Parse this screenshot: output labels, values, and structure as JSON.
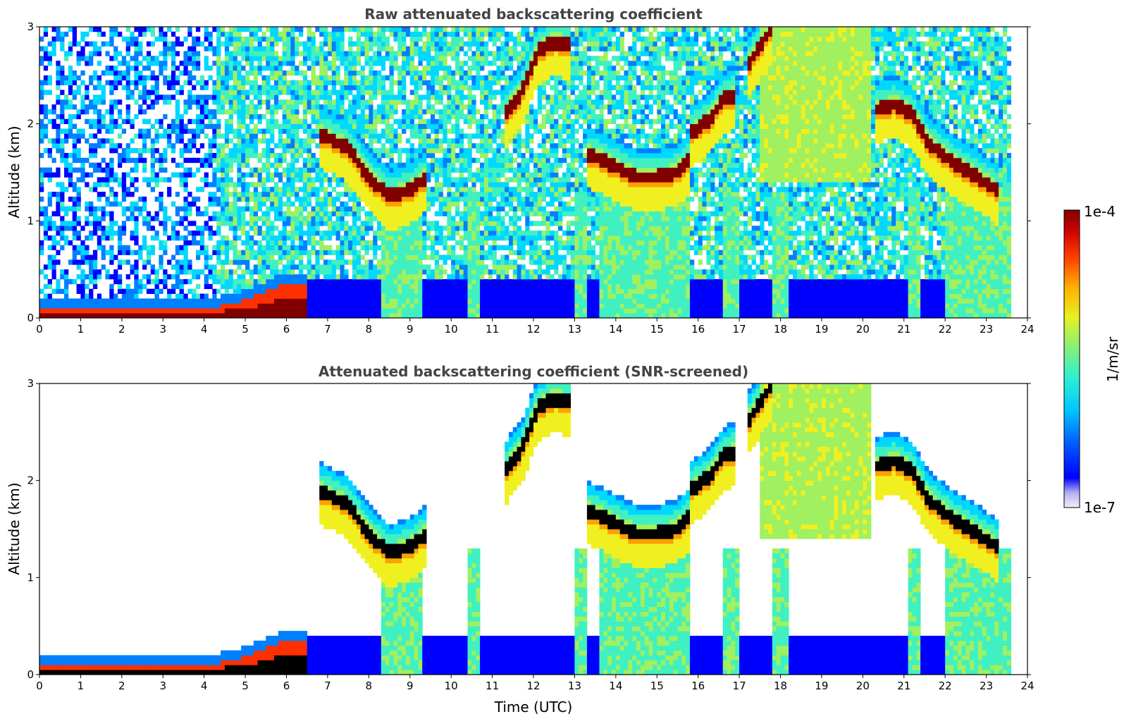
{
  "chart_data": [
    {
      "type": "heatmap",
      "title": "Raw attenuated backscattering coefficient",
      "xlabel": "",
      "ylabel": "Altitude (km)",
      "xlim": [
        0,
        24
      ],
      "ylim": [
        0,
        3
      ],
      "xticks": [
        "0",
        "1",
        "2",
        "3",
        "4",
        "5",
        "6",
        "7",
        "8",
        "9",
        "10",
        "11",
        "12",
        "13",
        "14",
        "15",
        "16",
        "17",
        "18",
        "19",
        "20",
        "21",
        "22",
        "23",
        "24"
      ],
      "yticks": [
        "0",
        "1",
        "2",
        "3"
      ],
      "data_end_hour": 23.6,
      "layers": [
        {
          "feature": "surface aerosol layer",
          "x": [
            0,
            4.3,
            5,
            5.8,
            6.5
          ],
          "y_top_km": [
            0.12,
            0.12,
            0.18,
            0.33,
            0.36
          ],
          "level": "high"
        },
        {
          "feature": "cloud base",
          "x": [
            6.8,
            7.5,
            8,
            8.5,
            9,
            9.4
          ],
          "y_km": [
            1.9,
            1.75,
            1.45,
            1.25,
            1.32,
            1.45
          ],
          "level": "high"
        },
        {
          "feature": "cloud base",
          "x": [
            11.3,
            11.7,
            12.1,
            12.5,
            12.9
          ],
          "y_km": [
            2.1,
            2.3,
            2.75,
            2.85,
            2.8
          ],
          "level": "high"
        },
        {
          "feature": "cloud layer",
          "x": [
            13.3,
            13.8,
            14.5,
            15.0,
            15.5,
            15.8
          ],
          "y_km": [
            1.7,
            1.6,
            1.45,
            1.45,
            1.5,
            1.65
          ],
          "level": "mid-high"
        },
        {
          "feature": "cloud base",
          "x": [
            15.8,
            16.3,
            16.6,
            16.9
          ],
          "y_km": [
            1.9,
            2.05,
            2.25,
            2.3
          ],
          "level": "high"
        },
        {
          "feature": "cloud base",
          "x": [
            17.2,
            17.5,
            17.8
          ],
          "y_km": [
            2.6,
            2.8,
            3.0
          ],
          "level": "high"
        },
        {
          "feature": "cloud base",
          "x": [
            20.3,
            20.8,
            21.2,
            21.6,
            22.2,
            22.8,
            23.3
          ],
          "y_km": [
            2.15,
            2.2,
            2.1,
            1.8,
            1.6,
            1.45,
            1.3
          ],
          "level": "high"
        }
      ]
    },
    {
      "type": "heatmap",
      "title": "Attenuated backscattering coefficient (SNR-screened)",
      "xlabel": "Time (UTC)",
      "ylabel": "Altitude (km)",
      "xlim": [
        0,
        24
      ],
      "ylim": [
        0,
        3
      ],
      "xticks": [
        "0",
        "1",
        "2",
        "3",
        "4",
        "5",
        "6",
        "7",
        "8",
        "9",
        "10",
        "11",
        "12",
        "13",
        "14",
        "15",
        "16",
        "17",
        "18",
        "19",
        "20",
        "21",
        "22",
        "23",
        "24"
      ],
      "yticks": [
        "0",
        "1",
        "2",
        "3"
      ],
      "data_end_hour": 23.6
    }
  ],
  "colorbar": {
    "label": "1/m/sr",
    "max_label": "1e-4",
    "min_label": "1e-7",
    "scale": "log",
    "range": [
      1e-07,
      0.0001
    ],
    "colors": [
      "#e8e8f8",
      "#9090e8",
      "#0000ff",
      "#0080ff",
      "#00d8ff",
      "#40f0c0",
      "#a0f060",
      "#f0f020",
      "#ffa000",
      "#ff3000",
      "#c00000",
      "#800000"
    ]
  }
}
